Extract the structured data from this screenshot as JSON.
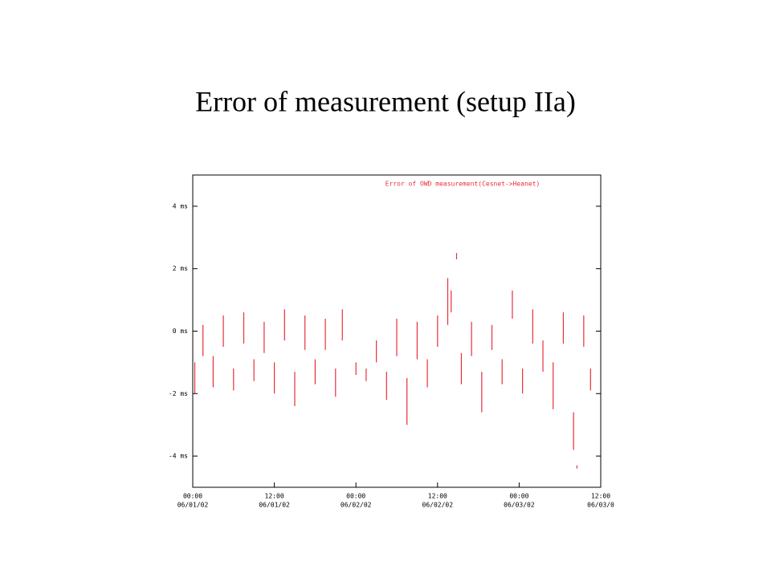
{
  "title": "Error of measurement (setup IIa)",
  "chart_data": {
    "type": "line",
    "legend_title": "Error of OWD measurement(Cesnet->Heanet)",
    "xlim": [
      0,
      60
    ],
    "ylim": [
      -5,
      5
    ],
    "xticks": [
      {
        "value": 0,
        "label": "00:00"
      },
      {
        "value": 12,
        "label": "12:00"
      },
      {
        "value": 24,
        "label": "00:00"
      },
      {
        "value": 36,
        "label": "12:00"
      },
      {
        "value": 48,
        "label": "00:00"
      },
      {
        "value": 60,
        "label": "12:00"
      }
    ],
    "xtick_dates": [
      "06/01/02",
      "06/01/02",
      "06/02/02",
      "06/02/02",
      "06/03/02",
      "06/03/0"
    ],
    "yticks": [
      {
        "value": 4,
        "label": "4 ms"
      },
      {
        "value": 2,
        "label": "2 ms"
      },
      {
        "value": 0,
        "label": "0 ms"
      },
      {
        "value": -2,
        "label": "-2 ms"
      },
      {
        "value": -4,
        "label": "-4 ms"
      }
    ],
    "series": [
      {
        "color": "#e8303a",
        "x": [
          0.3,
          0.3,
          null,
          1.5,
          1.5,
          null,
          3,
          3,
          null,
          4.5,
          4.5,
          null,
          6,
          6,
          null,
          7.5,
          7.5,
          null,
          9,
          9,
          null,
          10.5,
          10.5,
          null,
          12,
          12,
          null,
          13.5,
          13.5,
          null,
          15,
          15,
          null,
          16.5,
          16.5,
          null,
          18,
          18,
          null,
          19.5,
          19.5,
          null,
          21,
          21,
          null,
          22,
          22,
          null,
          24,
          24,
          null,
          25.5,
          25.5,
          null,
          27,
          27,
          null,
          28.5,
          28.5,
          null,
          30,
          30,
          null,
          31.5,
          31.5,
          null,
          33,
          33,
          null,
          34.5,
          34.5,
          null,
          36,
          36,
          null,
          37.5,
          37.5,
          null,
          38,
          38,
          null,
          38.8,
          38.8,
          null,
          39.5,
          39.5,
          null,
          41,
          41,
          null,
          42.5,
          42.5,
          null,
          44,
          44,
          null,
          45.5,
          45.5,
          null,
          47,
          47,
          null,
          48.5,
          48.5,
          null,
          50,
          50,
          null,
          51.5,
          51.5,
          null,
          53,
          53,
          null,
          54.5,
          54.5,
          null,
          56,
          56,
          null,
          56.5,
          56.5,
          null,
          57.5,
          57.5,
          null,
          58.5,
          58.5
        ],
        "values": [
          -1.0,
          -2.0,
          null,
          0.2,
          -0.8,
          null,
          -0.8,
          -1.8,
          null,
          0.5,
          -0.5,
          null,
          -1.2,
          -1.9,
          null,
          0.6,
          -0.4,
          null,
          -0.9,
          -1.6,
          null,
          0.3,
          -0.7,
          null,
          -1.0,
          -2.0,
          null,
          0.7,
          -0.3,
          null,
          -1.3,
          -2.4,
          null,
          0.5,
          -0.6,
          null,
          -0.9,
          -1.7,
          null,
          0.4,
          -0.6,
          null,
          -1.2,
          -2.1,
          null,
          0.7,
          -0.3,
          null,
          -1.0,
          -1.4,
          null,
          -1.2,
          -1.6,
          null,
          -0.3,
          -1.0,
          null,
          -1.3,
          -2.2,
          null,
          0.4,
          -0.8,
          null,
          -1.5,
          -3.0,
          null,
          0.3,
          -0.9,
          null,
          -0.9,
          -1.8,
          null,
          0.5,
          -0.5,
          null,
          0.2,
          1.7,
          null,
          1.3,
          0.6,
          null,
          2.5,
          2.3,
          null,
          -0.7,
          -1.7,
          null,
          0.3,
          -0.8,
          null,
          -1.3,
          -2.6,
          null,
          0.2,
          -0.6,
          null,
          -0.9,
          -1.7,
          null,
          1.3,
          0.4,
          null,
          -1.2,
          -2.0,
          null,
          0.7,
          -0.4,
          null,
          -0.3,
          -1.3,
          null,
          -1.0,
          -2.5,
          null,
          0.6,
          -0.4,
          null,
          -2.6,
          -3.8,
          null,
          -4.3,
          -4.4,
          null,
          0.5,
          -0.5,
          null,
          -1.2,
          -1.9
        ]
      }
    ]
  }
}
